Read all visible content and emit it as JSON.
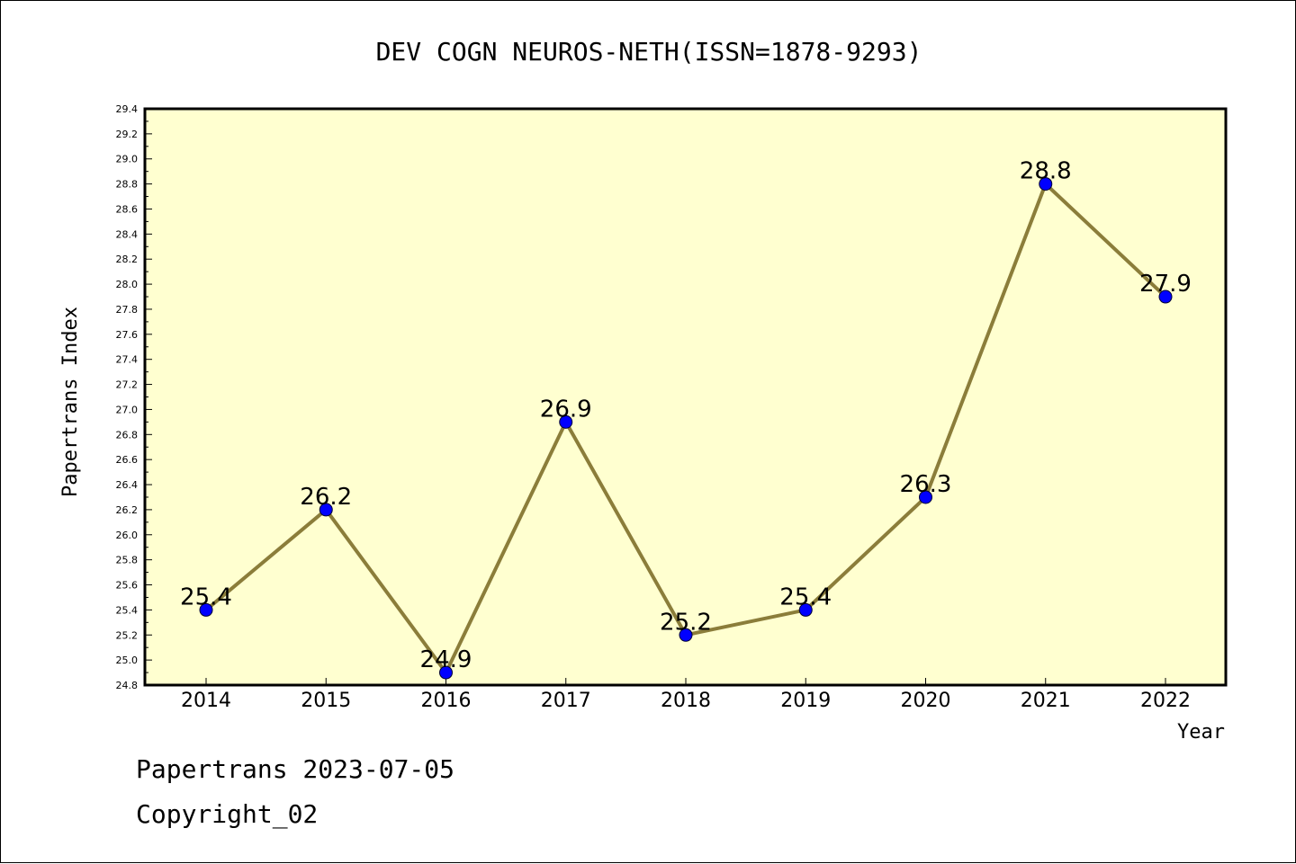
{
  "chart_data": {
    "type": "line",
    "title": "DEV COGN NEUROS-NETH(ISSN=1878-9293)",
    "xlabel": "Year",
    "ylabel": "Papertrans Index",
    "categories": [
      "2014",
      "2015",
      "2016",
      "2017",
      "2018",
      "2019",
      "2020",
      "2021",
      "2022"
    ],
    "series": [
      {
        "values": [
          25.4,
          26.2,
          24.9,
          26.9,
          25.2,
          25.4,
          26.3,
          28.8,
          27.9
        ]
      }
    ],
    "data_labels": [
      "25.4",
      "26.2",
      "24.9",
      "26.9",
      "25.2",
      "25.4",
      "26.3",
      "28.8",
      "27.9"
    ],
    "ylim": [
      24.8,
      29.4
    ],
    "ytick_labels": [
      "24.8",
      "25.0",
      "25.2",
      "25.4",
      "25.6",
      "25.8",
      "26.0",
      "26.2",
      "26.4",
      "26.6",
      "26.8",
      "27.0",
      "27.2",
      "27.4",
      "27.6",
      "27.8",
      "28.0",
      "28.2",
      "28.4",
      "28.6",
      "28.8",
      "29.0",
      "29.2",
      "29.4"
    ],
    "grid": false,
    "colors": {
      "line": "#8b7d3a",
      "marker": "#0000ff",
      "plot_bg": "#ffffd0"
    }
  },
  "footer": {
    "line1": "Papertrans 2023-07-05",
    "line2": "Copyright_02"
  }
}
